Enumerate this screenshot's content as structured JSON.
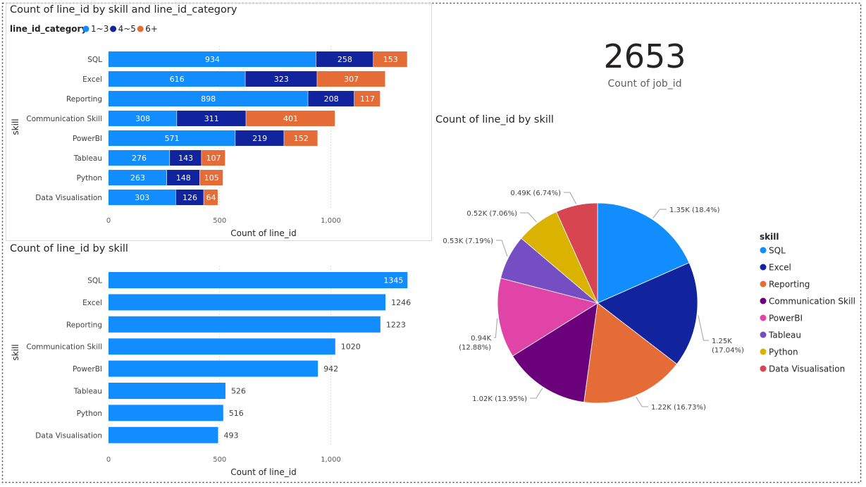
{
  "kpi": {
    "value": "2653",
    "label": "Count of job_id"
  },
  "chart_data": [
    {
      "type": "bar",
      "orientation": "horizontal",
      "stacked": true,
      "title": "Count of line_id by skill and line_id_category",
      "xlabel": "Count of line_id",
      "ylabel": "skill",
      "legend_title": "line_id_category",
      "legend_position": "top-left",
      "categories": [
        "SQL",
        "Excel",
        "Reporting",
        "Communication Skill",
        "PowerBI",
        "Tableau",
        "Python",
        "Data Visualisation"
      ],
      "series": [
        {
          "name": "1~3",
          "color": "#118dff",
          "values": [
            934,
            616,
            898,
            308,
            571,
            276,
            263,
            303
          ]
        },
        {
          "name": "4~5",
          "color": "#12239e",
          "values": [
            258,
            323,
            208,
            311,
            219,
            143,
            148,
            126
          ]
        },
        {
          "name": "6+",
          "color": "#e66c37",
          "values": [
            153,
            307,
            117,
            401,
            152,
            107,
            105,
            64
          ]
        }
      ],
      "xticks": [
        "0",
        "500",
        "1,000"
      ],
      "xlim": [
        0,
        1400
      ],
      "grid": true
    },
    {
      "type": "bar",
      "orientation": "horizontal",
      "title": "Count of line_id by skill",
      "xlabel": "Count of line_id",
      "ylabel": "skill",
      "categories": [
        "SQL",
        "Excel",
        "Reporting",
        "Communication Skill",
        "PowerBI",
        "Tableau",
        "Python",
        "Data Visualisation"
      ],
      "values": [
        1345,
        1246,
        1223,
        1020,
        942,
        526,
        516,
        493
      ],
      "color": "#118dff",
      "xticks": [
        "0",
        "500",
        "1,000"
      ],
      "xlim": [
        0,
        1400
      ],
      "grid": true
    },
    {
      "type": "pie",
      "title": "Count of line_id by skill",
      "legend_title": "skill",
      "legend_position": "right",
      "slices": [
        {
          "name": "SQL",
          "value": 1345,
          "label": "1.35K (18.4%)",
          "color": "#118dff"
        },
        {
          "name": "Excel",
          "value": 1246,
          "label": "1.25K (17.04%)",
          "color": "#12239e"
        },
        {
          "name": "Reporting",
          "value": 1223,
          "label": "1.22K (16.73%)",
          "color": "#e66c37"
        },
        {
          "name": "Communication Skill",
          "value": 1020,
          "label": "1.02K (13.95%)",
          "color": "#6b007b"
        },
        {
          "name": "PowerBI",
          "value": 942,
          "label": "0.94K (12.88%)",
          "color": "#e044a7"
        },
        {
          "name": "Tableau",
          "value": 526,
          "label": "0.53K (7.19%)",
          "color": "#744ec2"
        },
        {
          "name": "Python",
          "value": 516,
          "label": "0.52K (7.06%)",
          "color": "#d9b300"
        },
        {
          "name": "Data Visualisation",
          "value": 493,
          "label": "0.49K (6.74%)",
          "color": "#d64550"
        }
      ]
    }
  ]
}
